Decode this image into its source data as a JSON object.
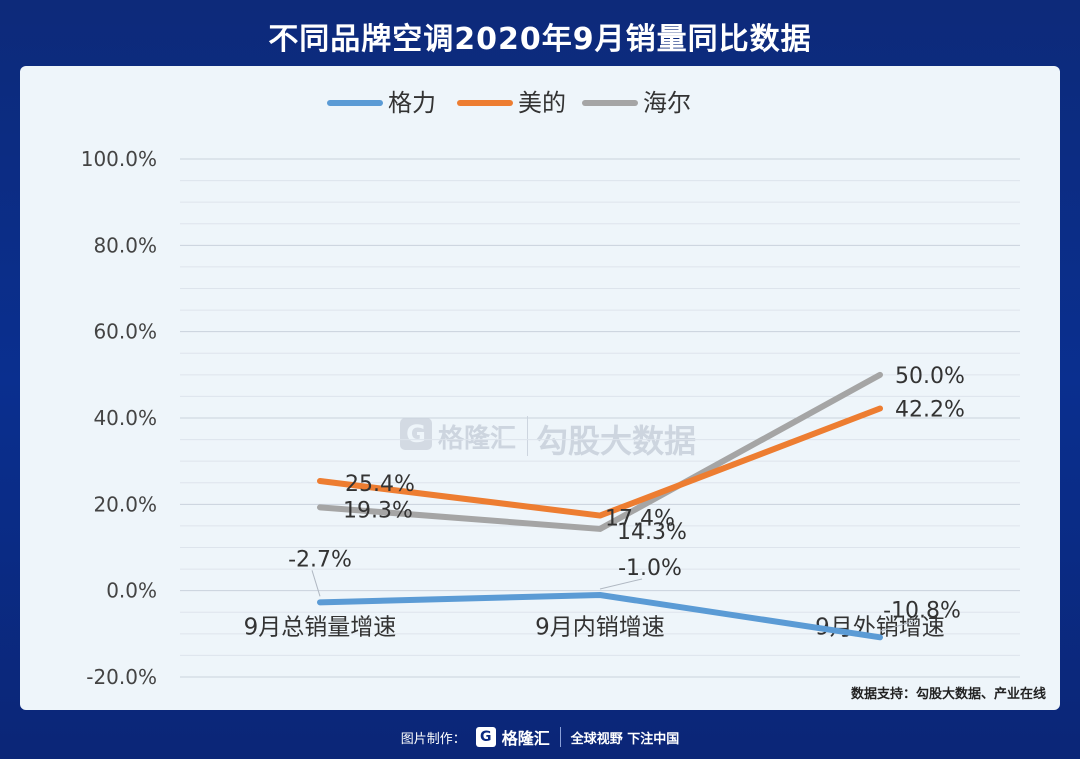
{
  "page_title": "不同品牌空调2020年9月销量同比数据",
  "source_note": "数据支持：勾股大数据、产业在线",
  "watermark": {
    "brand": "格隆汇",
    "text": "勾股大数据"
  },
  "footer": {
    "label": "图片制作：",
    "brand": "格隆汇",
    "slogan": "全球视野 下注中国"
  },
  "chart_data": {
    "type": "line",
    "categories": [
      "9月总销量增速",
      "9月内销增速",
      "9月外销增速"
    ],
    "ylim": [
      -20,
      100
    ],
    "yticks": [
      -20,
      0,
      20,
      40,
      60,
      80,
      100
    ],
    "ytick_labels": [
      "-20.0%",
      "0.0%",
      "20.0%",
      "40.0%",
      "60.0%",
      "80.0%",
      "100.0%"
    ],
    "minor_grid_step": 5,
    "legend_position": "top-center",
    "series": [
      {
        "name": "格力",
        "color": "#5b9bd5",
        "values": [
          -2.7,
          -1.0,
          -10.8
        ],
        "labels": [
          "-2.7%",
          "-1.0%",
          "-10.8%"
        ]
      },
      {
        "name": "美的",
        "color": "#ed7d31",
        "values": [
          25.4,
          17.4,
          42.2
        ],
        "labels": [
          "25.4%",
          "17.4%",
          "42.2%"
        ]
      },
      {
        "name": "海尔",
        "color": "#a5a5a5",
        "values": [
          19.3,
          14.3,
          50.0
        ],
        "labels": [
          "19.3%",
          "14.3%",
          "50.0%"
        ]
      }
    ]
  }
}
